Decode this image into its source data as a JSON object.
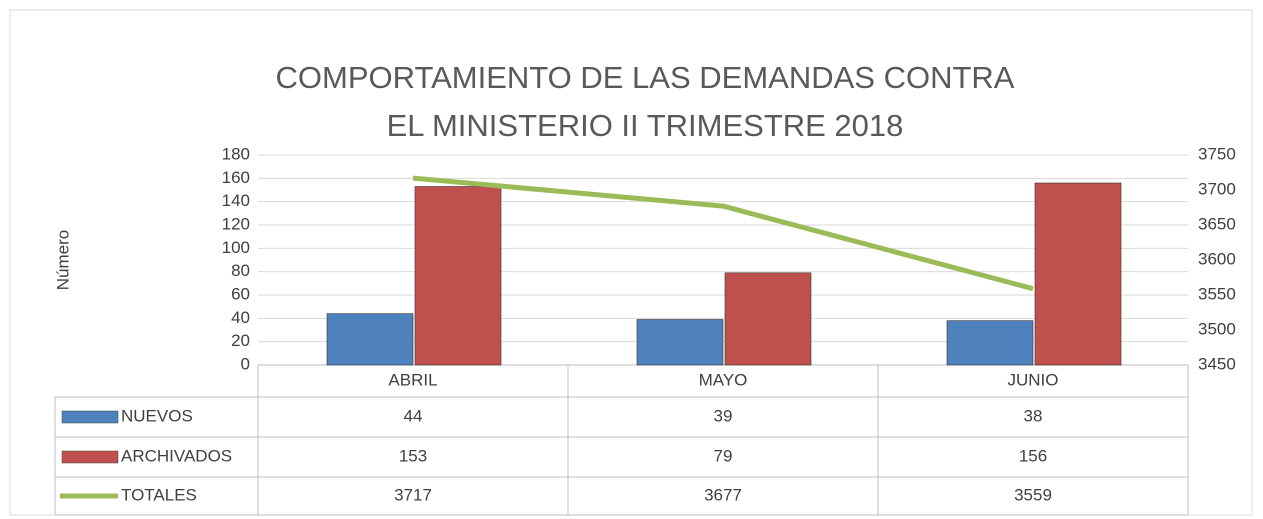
{
  "chart_data": {
    "type": "bar",
    "title": [
      "COMPORTAMIENTO DE LAS DEMANDAS CONTRA",
      "EL MINISTERIO II TRIMESTRE 2018"
    ],
    "y_label": "Número",
    "categories": [
      "ABRIL",
      "MAYO",
      "JUNIO"
    ],
    "series": [
      {
        "name": "NUEVOS",
        "color": "#4f81bd",
        "type": "bar",
        "values": [
          44,
          39,
          38
        ]
      },
      {
        "name": "ARCHIVADOS",
        "color": "#c0504d",
        "type": "bar",
        "values": [
          153,
          79,
          156
        ]
      },
      {
        "name": "TOTALES",
        "color": "#9bbb59",
        "type": "line",
        "axis": "y2",
        "values": [
          3717,
          3677,
          3559
        ]
      }
    ],
    "ylim": [
      0,
      180
    ],
    "yticks": [
      0,
      20,
      40,
      60,
      80,
      100,
      120,
      140,
      160,
      180
    ],
    "y2lim": [
      3450,
      3750
    ],
    "y2ticks": [
      3450,
      3500,
      3550,
      3600,
      3650,
      3700,
      3750
    ],
    "grid": true,
    "data_table": true
  }
}
